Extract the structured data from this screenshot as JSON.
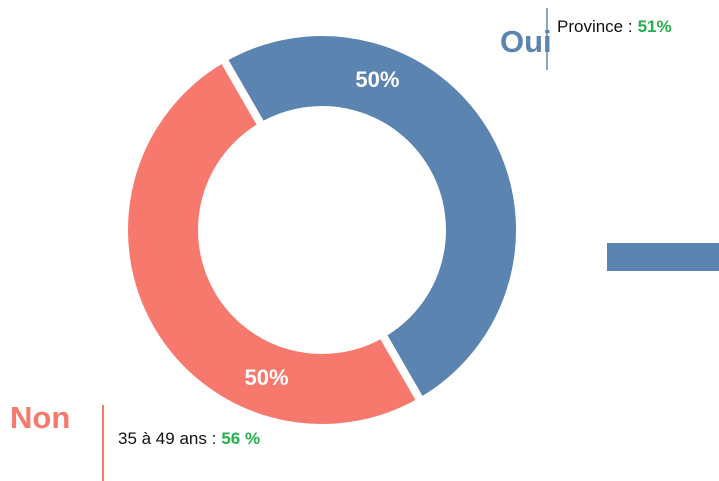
{
  "chart_data": {
    "type": "pie",
    "donut": true,
    "categories": [
      "Oui",
      "Non"
    ],
    "values": [
      50,
      50
    ],
    "value_labels": [
      "50%",
      "50%"
    ],
    "colors": [
      "#5b84b1",
      "#f7796d"
    ],
    "annotations": [
      {
        "label": "Province :",
        "highlight": "51%"
      },
      {
        "label": "35 à 49 ans :",
        "highlight": "56 %"
      }
    ]
  }
}
